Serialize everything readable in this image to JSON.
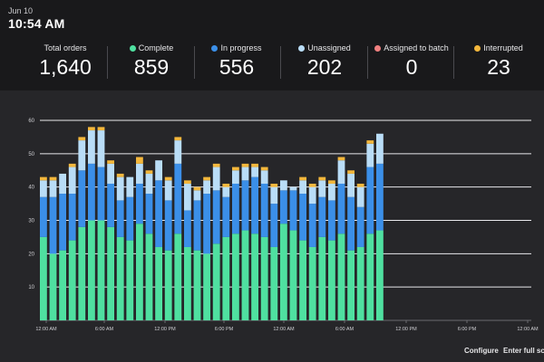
{
  "header": {
    "date": "Jun 10",
    "time": "10:54 AM"
  },
  "stats": [
    {
      "label": "Total orders",
      "value": "1,640",
      "dot_color": null
    },
    {
      "label": "Complete",
      "value": "859",
      "dot_color": "#4fe0a0"
    },
    {
      "label": "In progress",
      "value": "556",
      "dot_color": "#3b8fe8"
    },
    {
      "label": "Unassigned",
      "value": "202",
      "dot_color": "#b9ddf7"
    },
    {
      "label": "Assigned to batch",
      "value": "0",
      "dot_color": "#f08080"
    },
    {
      "label": "Interrupted",
      "value": "23",
      "dot_color": "#f3b73c"
    }
  ],
  "footer": {
    "configure": "Configure",
    "fullscreen": "Enter full scr"
  },
  "chart_data": {
    "type": "bar",
    "stacked": true,
    "ylim": [
      0,
      60
    ],
    "yticks": [
      10,
      20,
      30,
      40,
      50,
      60
    ],
    "grid": true,
    "x_ticks": [
      "12:00 AM",
      "6:00 AM",
      "12:00 PM",
      "6:00 PM",
      "12:00 AM",
      "6:00 AM",
      "12:00 PM",
      "6:00 PM",
      "12:00 AM"
    ],
    "bar_count": 36,
    "colors": {
      "complete": "#4fe0a0",
      "in_progress": "#3b8fe8",
      "unassigned": "#b9ddf7",
      "interrupted": "#f3b73c"
    },
    "series": [
      {
        "name": "Complete",
        "key": "complete",
        "values": [
          25,
          20,
          21,
          24,
          28,
          30,
          30,
          28,
          25,
          24,
          29,
          26,
          22,
          21,
          26,
          22,
          21,
          20,
          23,
          25,
          26,
          27,
          26,
          25,
          22,
          29,
          27,
          24,
          22,
          25,
          24,
          26,
          21,
          22,
          26,
          27
        ]
      },
      {
        "name": "In progress",
        "key": "in_progress",
        "values": [
          12,
          17,
          17,
          14,
          17,
          17,
          16,
          13,
          11,
          13,
          12,
          12,
          20,
          15,
          21,
          11,
          15,
          18,
          16,
          12,
          15,
          15,
          17,
          16,
          13,
          10,
          12,
          14,
          13,
          12,
          12,
          15,
          16,
          12,
          20,
          20
        ]
      },
      {
        "name": "Unassigned",
        "key": "unassigned",
        "values": [
          5,
          5,
          6,
          8,
          9,
          10,
          11,
          6,
          7,
          6,
          6,
          6,
          6,
          6,
          7,
          8,
          3,
          4,
          7,
          3,
          4,
          4,
          3,
          4,
          5,
          3,
          1,
          4,
          5,
          5,
          5,
          7,
          7,
          6,
          7,
          9
        ]
      },
      {
        "name": "Interrupted",
        "key": "interrupted",
        "values": [
          1,
          1,
          0,
          1,
          1,
          1,
          1,
          1,
          1,
          0,
          2,
          1,
          0,
          1,
          1,
          1,
          1,
          1,
          1,
          1,
          1,
          1,
          1,
          1,
          1,
          0,
          0,
          1,
          1,
          1,
          1,
          1,
          1,
          1,
          1,
          0
        ]
      }
    ]
  }
}
